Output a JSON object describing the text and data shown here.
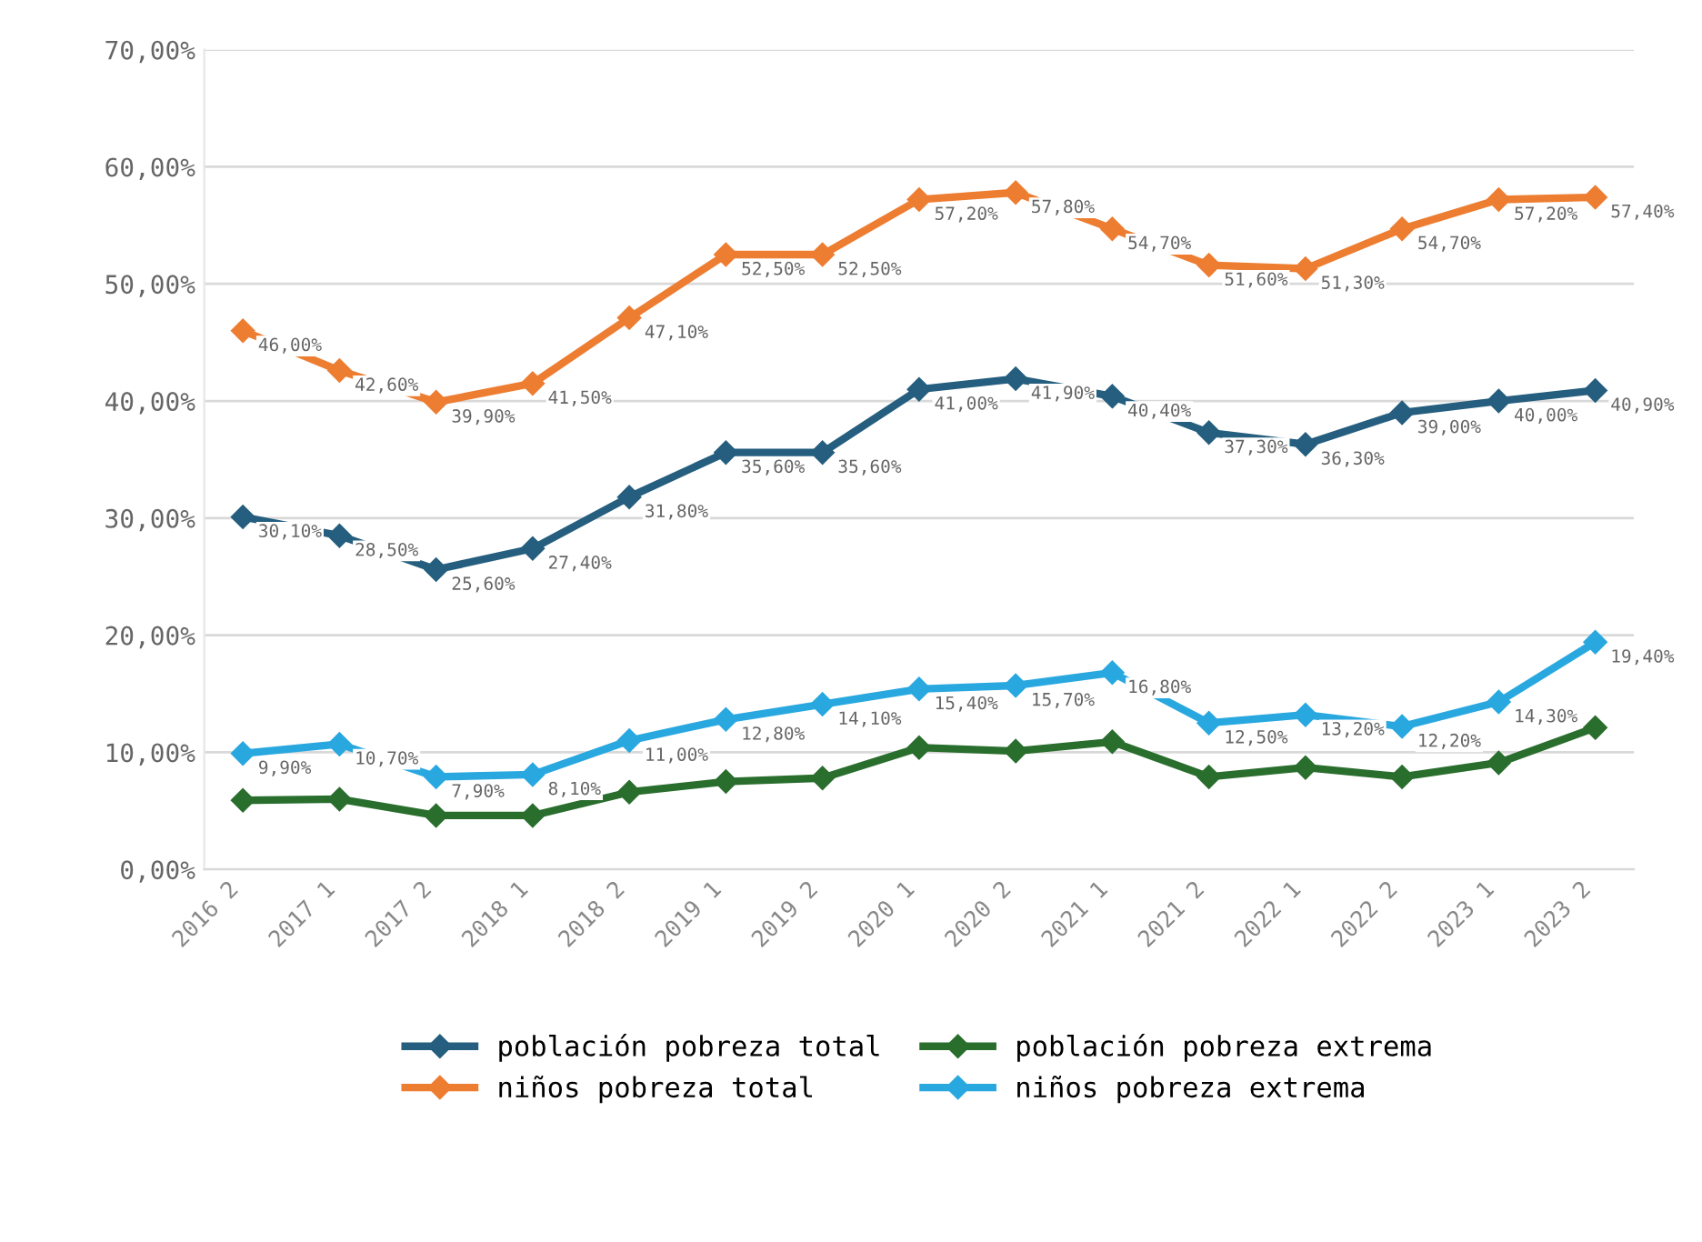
{
  "chart_data": {
    "type": "line",
    "categories": [
      "2016 2",
      "2017 1",
      "2017 2",
      "2018 1",
      "2018 2",
      "2019 1",
      "2019 2",
      "2020 1",
      "2020 2",
      "2021 1",
      "2021 2",
      "2022 1",
      "2022 2",
      "2023 1",
      "2023 2"
    ],
    "ylim": [
      0,
      70
    ],
    "yticks": [
      {
        "value": 0,
        "label": "0,00%"
      },
      {
        "value": 10,
        "label": "10,00%"
      },
      {
        "value": 20,
        "label": "20,00%"
      },
      {
        "value": 30,
        "label": "30,00%"
      },
      {
        "value": 40,
        "label": "40,00%"
      },
      {
        "value": 50,
        "label": "50,00%"
      },
      {
        "value": 60,
        "label": "60,00%"
      },
      {
        "value": 70,
        "label": "70,00%"
      }
    ],
    "grid": "y",
    "legend": "bottom",
    "marker": "diamond",
    "line_style": "solid",
    "series": [
      {
        "name": "población pobreza total",
        "color": "#255e7e",
        "values": [
          30.1,
          28.5,
          25.6,
          27.4,
          31.8,
          35.6,
          35.6,
          41.0,
          41.9,
          40.4,
          37.3,
          36.3,
          39.0,
          40.0,
          40.9
        ],
        "value_labels": [
          "30,10%",
          "28,50%",
          "25,60%",
          "27,40%",
          "31,80%",
          "35,60%",
          "35,60%",
          "41,00%",
          "41,90%",
          "40,40%",
          "37,30%",
          "36,30%",
          "39,00%",
          "40,00%",
          "40,90%"
        ]
      },
      {
        "name": "niños pobreza total",
        "color": "#ed7d31",
        "values": [
          46.0,
          42.6,
          39.9,
          41.5,
          47.1,
          52.5,
          52.5,
          57.2,
          57.8,
          54.7,
          51.6,
          51.3,
          54.7,
          57.2,
          57.4
        ],
        "value_labels": [
          "46,00%",
          "42,60%",
          "39,90%",
          "41,50%",
          "47,10%",
          "52,50%",
          "52,50%",
          "57,20%",
          "57,80%",
          "54,70%",
          "51,60%",
          "51,30%",
          "54,70%",
          "57,20%",
          "57,40%"
        ]
      },
      {
        "name": "población pobreza extrema",
        "color": "#2a6e2e",
        "values": [
          5.9,
          6.0,
          4.6,
          4.6,
          6.6,
          7.5,
          7.8,
          10.4,
          10.1,
          10.9,
          7.9,
          8.7,
          7.9,
          9.1,
          12.1
        ]
      },
      {
        "name": "niños pobreza extrema",
        "color": "#29a8e0",
        "values": [
          9.9,
          10.7,
          7.9,
          8.1,
          11.0,
          12.8,
          14.1,
          15.4,
          15.7,
          16.8,
          12.5,
          13.2,
          12.2,
          14.3,
          19.4
        ],
        "value_labels": [
          "9,90%",
          "10,70%",
          "7,90%",
          "8,10%",
          "11,00%",
          "12,80%",
          "14,10%",
          "15,40%",
          "15,70%",
          "16,80%",
          "12,50%",
          "13,20%",
          "12,20%",
          "14,30%",
          "19,40%"
        ]
      }
    ]
  }
}
